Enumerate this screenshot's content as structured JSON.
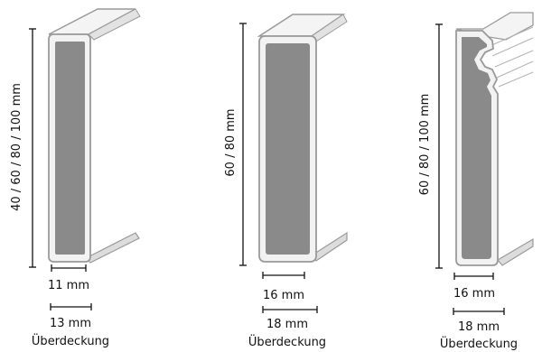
{
  "profiles": [
    {
      "height_label": "40 / 60 / 80 / 100 mm",
      "thickness_label": "11 mm",
      "overlap_value": "13 mm",
      "overlap_word": "Überdeckung"
    },
    {
      "height_label": "60 / 80 mm",
      "thickness_label": "16 mm",
      "overlap_value": "18 mm",
      "overlap_word": "Überdeckung"
    },
    {
      "height_label": "60 / 80 / 100 mm",
      "thickness_label": "16 mm",
      "overlap_value": "18 mm",
      "overlap_word": "Überdeckung"
    }
  ],
  "colors": {
    "core": "#8a8a8a",
    "outline": "#9a9a9a",
    "face": "#f2f2f2",
    "dimension": "#111111"
  }
}
